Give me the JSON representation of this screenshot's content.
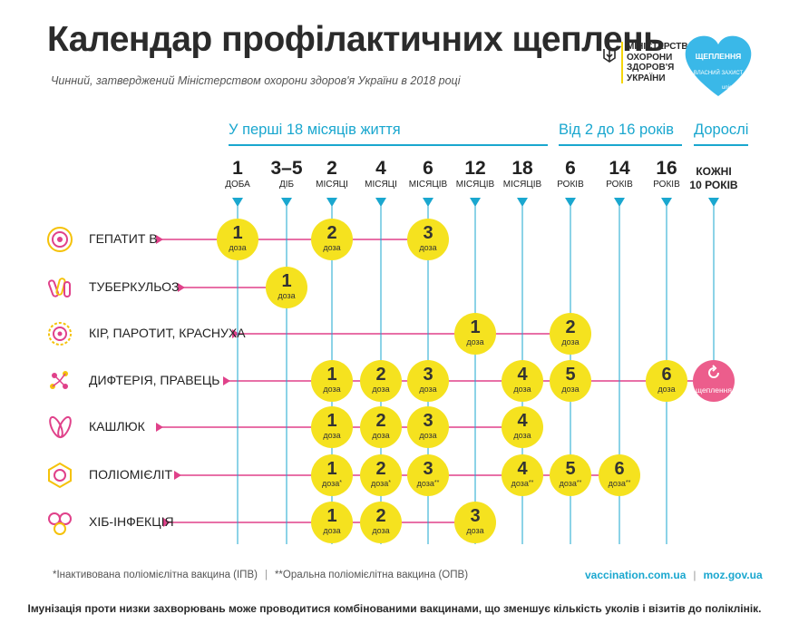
{
  "title": "Календар профілактичних щеплень",
  "subtitle": "Чинний, затверджений Міністерством охорони здоров'я України в 2018 році",
  "ministry": {
    "lines": [
      "Міністерство",
      "охорони",
      "здоров'я",
      "України"
    ]
  },
  "campaign": {
    "line1": "ЩЕПЛЕННЯ",
    "line2": "ВЛАСНИЙ ЗАХИСТ",
    "brand": "unicef"
  },
  "groups": [
    {
      "label": "У перші 18 місяців життя"
    },
    {
      "label": "Від 2 до 16 років"
    },
    {
      "label": "Дорослі"
    }
  ],
  "ages": [
    {
      "num": "1",
      "unit": "доба"
    },
    {
      "num": "3–5",
      "unit": "діб"
    },
    {
      "num": "2",
      "unit": "місяці"
    },
    {
      "num": "4",
      "unit": "місяці"
    },
    {
      "num": "6",
      "unit": "місяців"
    },
    {
      "num": "12",
      "unit": "місяців"
    },
    {
      "num": "18",
      "unit": "місяців"
    },
    {
      "num": "6",
      "unit": "років"
    },
    {
      "num": "14",
      "unit": "років"
    },
    {
      "num": "16",
      "unit": "років"
    }
  ],
  "adult_age": {
    "line1": "Кожні",
    "line2": "10 років"
  },
  "dose_label": "доза",
  "booster_label": "щеплення",
  "vaccines": [
    {
      "name": "Гепатит B",
      "doses": [
        {
          "col": 0,
          "n": "1",
          "mark": ""
        },
        {
          "col": 2,
          "n": "2",
          "mark": ""
        },
        {
          "col": 4,
          "n": "3",
          "mark": ""
        }
      ]
    },
    {
      "name": "Туберкульоз",
      "doses": [
        {
          "col": 1,
          "n": "1",
          "mark": ""
        }
      ]
    },
    {
      "name": "Кір, паротит, краснуха",
      "doses": [
        {
          "col": 5,
          "n": "1",
          "mark": ""
        },
        {
          "col": 7,
          "n": "2",
          "mark": ""
        }
      ]
    },
    {
      "name": "Дифтерія, правець",
      "doses": [
        {
          "col": 2,
          "n": "1",
          "mark": ""
        },
        {
          "col": 3,
          "n": "2",
          "mark": ""
        },
        {
          "col": 4,
          "n": "3",
          "mark": ""
        },
        {
          "col": 6,
          "n": "4",
          "mark": ""
        },
        {
          "col": 7,
          "n": "5",
          "mark": ""
        },
        {
          "col": 9,
          "n": "6",
          "mark": ""
        }
      ],
      "adult_booster": true
    },
    {
      "name": "Кашлюк",
      "doses": [
        {
          "col": 2,
          "n": "1",
          "mark": ""
        },
        {
          "col": 3,
          "n": "2",
          "mark": ""
        },
        {
          "col": 4,
          "n": "3",
          "mark": ""
        },
        {
          "col": 6,
          "n": "4",
          "mark": ""
        }
      ]
    },
    {
      "name": "Поліомієліт",
      "doses": [
        {
          "col": 2,
          "n": "1",
          "mark": "*"
        },
        {
          "col": 3,
          "n": "2",
          "mark": "*"
        },
        {
          "col": 4,
          "n": "3",
          "mark": "**"
        },
        {
          "col": 6,
          "n": "4",
          "mark": "**"
        },
        {
          "col": 7,
          "n": "5",
          "mark": "**"
        },
        {
          "col": 8,
          "n": "6",
          "mark": "**"
        }
      ]
    },
    {
      "name": "Хіб-інфекція",
      "doses": [
        {
          "col": 2,
          "n": "1",
          "mark": ""
        },
        {
          "col": 3,
          "n": "2",
          "mark": ""
        },
        {
          "col": 5,
          "n": "3",
          "mark": ""
        }
      ]
    }
  ],
  "footnotes": {
    "ipv": "*Інактивована поліомієлітна вакцина (ІПВ)",
    "opv": "**Оральна поліомієлітна вакцина (ОПВ)"
  },
  "links": [
    "vaccination.com.ua",
    "moz.gov.ua"
  ],
  "bottom_note": "Імунізація проти низки захворювань може проводитися комбінованими вакцинами, що зменшує кількість уколів і візитів до поліклінік.",
  "colors": {
    "accent": "#1aa7cf",
    "dose": "#f5e21f",
    "line": "#e0418a",
    "booster": "#ec5d8c"
  }
}
